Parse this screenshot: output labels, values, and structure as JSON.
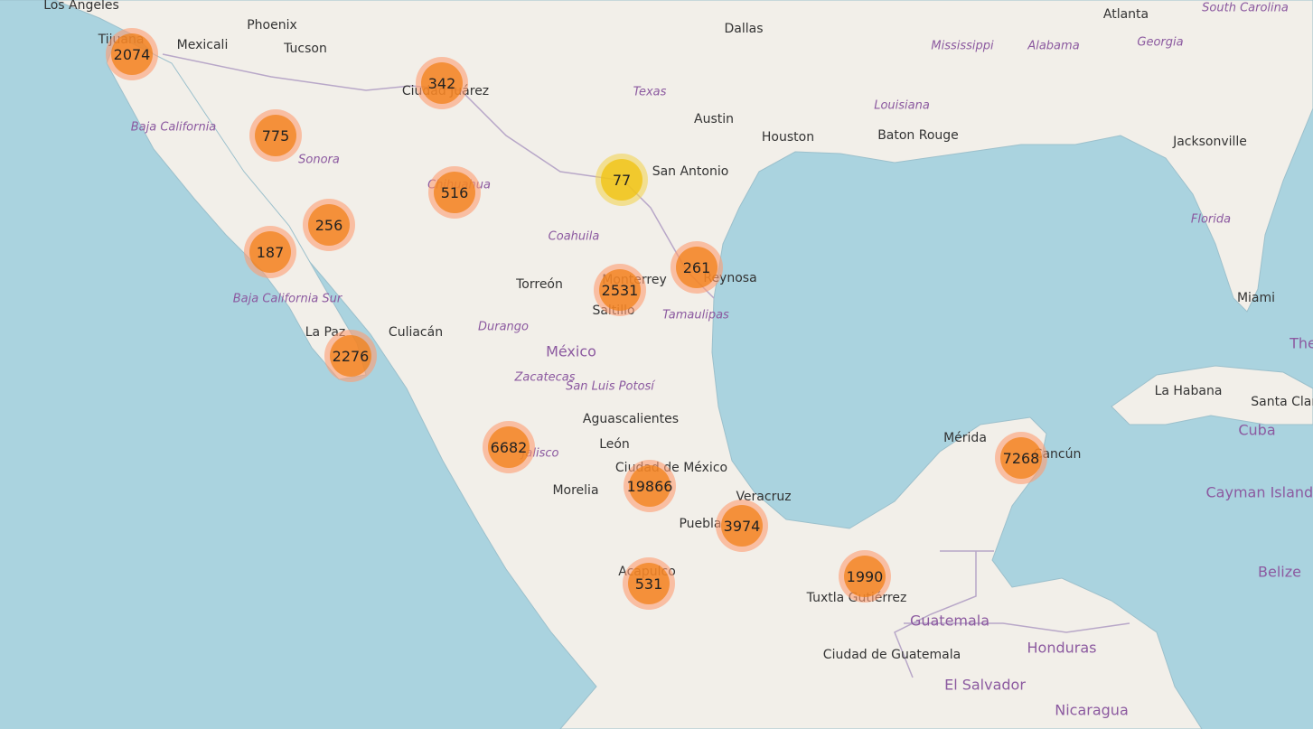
{
  "map": {
    "colors": {
      "water": "#aad3df",
      "land": "#f2efe9",
      "border": "#b8a7c8",
      "cluster_large": "#f18017",
      "cluster_medium": "#f0c20c"
    },
    "cities": [
      {
        "name": "Los Angeles"
      },
      {
        "name": "Tijuana"
      },
      {
        "name": "Mexicali"
      },
      {
        "name": "Phoenix"
      },
      {
        "name": "Tucson"
      },
      {
        "name": "Ciudad Juárez"
      },
      {
        "name": "Dallas"
      },
      {
        "name": "Austin"
      },
      {
        "name": "Houston"
      },
      {
        "name": "San Antonio"
      },
      {
        "name": "Baton Rouge"
      },
      {
        "name": "Atlanta"
      },
      {
        "name": "Jacksonville"
      },
      {
        "name": "Miami"
      },
      {
        "name": "Torreón"
      },
      {
        "name": "Monterrey"
      },
      {
        "name": "Saltillo"
      },
      {
        "name": "Reynosa"
      },
      {
        "name": "Culiacán"
      },
      {
        "name": "La Paz"
      },
      {
        "name": "Aguascalientes"
      },
      {
        "name": "León"
      },
      {
        "name": "Morelia"
      },
      {
        "name": "Ciudad de México"
      },
      {
        "name": "Puebla"
      },
      {
        "name": "Veracruz"
      },
      {
        "name": "Acapulco"
      },
      {
        "name": "Tuxtla Gutiérrez"
      },
      {
        "name": "Mérida"
      },
      {
        "name": "Cancún"
      },
      {
        "name": "La Habana"
      },
      {
        "name": "Santa Clara"
      },
      {
        "name": "Ciudad de Guatemala"
      }
    ],
    "states": [
      {
        "name": "Baja California"
      },
      {
        "name": "Sonora"
      },
      {
        "name": "Chihuahua"
      },
      {
        "name": "Coahuila"
      },
      {
        "name": "Baja California Sur"
      },
      {
        "name": "Durango"
      },
      {
        "name": "Tamaulipas"
      },
      {
        "name": "Zacatecas"
      },
      {
        "name": "San Luis Potosí"
      },
      {
        "name": "Jalisco"
      },
      {
        "name": "Texas"
      },
      {
        "name": "Louisiana"
      },
      {
        "name": "Mississippi"
      },
      {
        "name": "Alabama"
      },
      {
        "name": "Georgia"
      },
      {
        "name": "South Carolina"
      },
      {
        "name": "Florida"
      }
    ],
    "countries": [
      {
        "name": "México"
      },
      {
        "name": "Cuba"
      },
      {
        "name": "Cayman Islands"
      },
      {
        "name": "Belize"
      },
      {
        "name": "Guatemala"
      },
      {
        "name": "Honduras"
      },
      {
        "name": "El Salvador"
      },
      {
        "name": "Nicaragua"
      },
      {
        "name": "The"
      }
    ],
    "clusters": [
      {
        "count": "2074",
        "level": "large"
      },
      {
        "count": "342",
        "level": "large"
      },
      {
        "count": "775",
        "level": "large"
      },
      {
        "count": "77",
        "level": "medium"
      },
      {
        "count": "516",
        "level": "large"
      },
      {
        "count": "256",
        "level": "large"
      },
      {
        "count": "187",
        "level": "large"
      },
      {
        "count": "261",
        "level": "large"
      },
      {
        "count": "2531",
        "level": "large"
      },
      {
        "count": "2276",
        "level": "large"
      },
      {
        "count": "6682",
        "level": "large"
      },
      {
        "count": "19866",
        "level": "large"
      },
      {
        "count": "3974",
        "level": "large"
      },
      {
        "count": "1990",
        "level": "large"
      },
      {
        "count": "531",
        "level": "large"
      },
      {
        "count": "7268",
        "level": "large"
      }
    ]
  }
}
